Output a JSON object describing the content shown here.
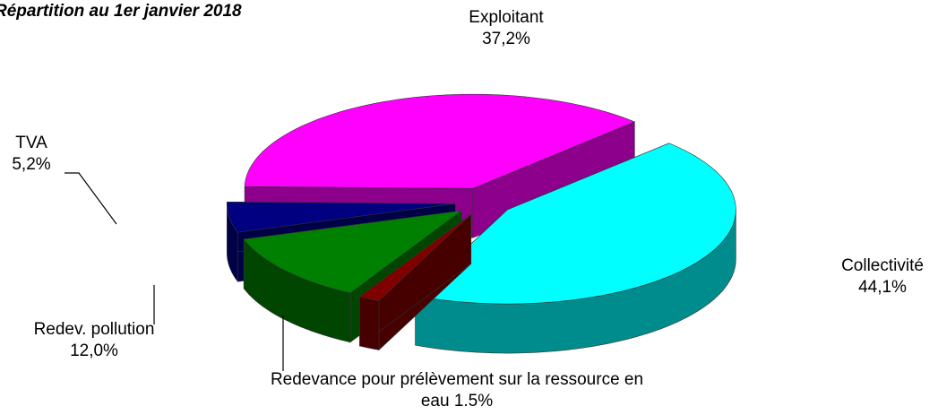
{
  "chart_data": {
    "type": "pie3d",
    "title": "Répartition au 1er janvier 2018",
    "categories": [
      "Collectivité",
      "Redevance pour prélèvement sur la ressource en eau",
      "Redev.  pollution",
      "TVA",
      "Exploitant"
    ],
    "values": [
      44.1,
      1.5,
      12.0,
      5.2,
      37.2
    ],
    "value_labels": [
      "44,1%",
      "1.5%",
      "12,0%",
      "5,2%",
      "37,2%"
    ],
    "colors": [
      "#00ffff",
      "#800000",
      "#008000",
      "#000080",
      "#ff00ff"
    ]
  }
}
